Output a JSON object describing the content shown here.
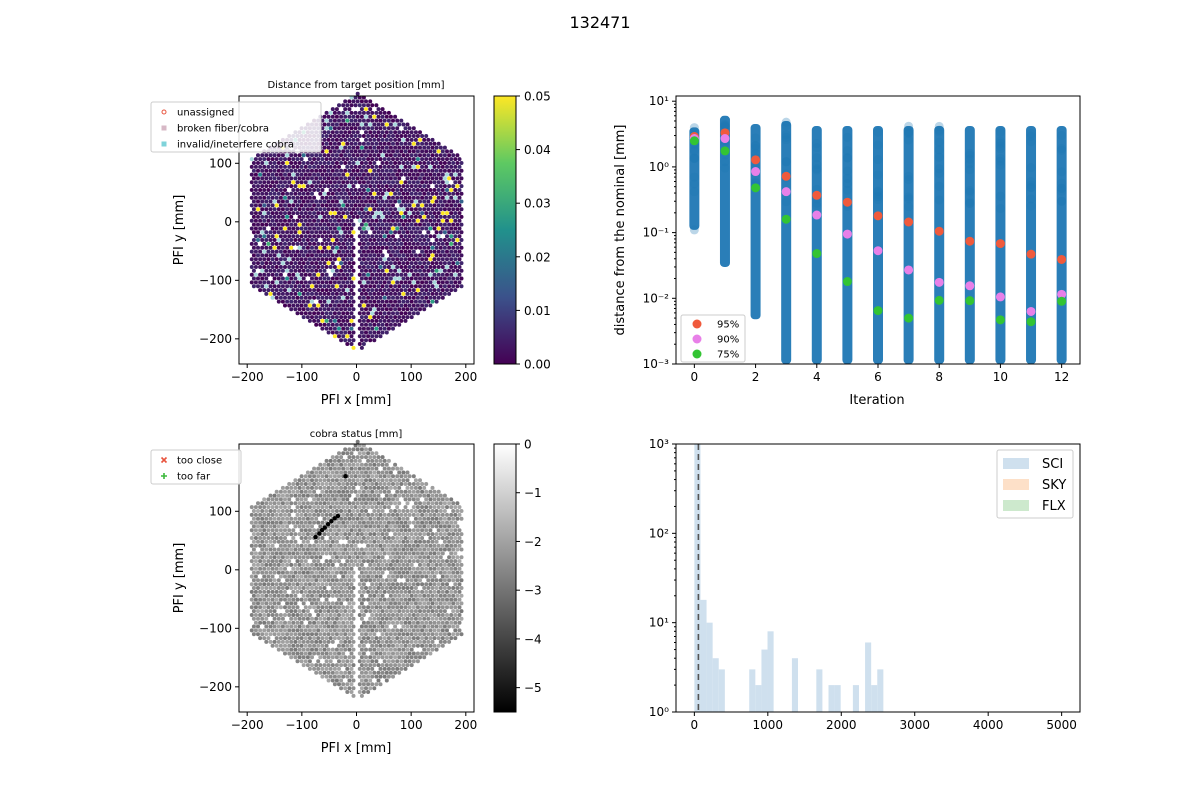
{
  "figure_title": "132471",
  "chart_data": [
    {
      "id": "hex_distance",
      "type": "scatter",
      "title": "Distance from target position [mm]",
      "xlabel": "PFI x [mm]",
      "ylabel": "PFI y [mm]",
      "xlim": [
        -215,
        215
      ],
      "ylim": [
        -243,
        215
      ],
      "xticks": [
        -200,
        -100,
        0,
        100,
        200
      ],
      "yticks": [
        -200,
        -100,
        0,
        100
      ],
      "xtick_labels": [
        "−200",
        "−100",
        "0",
        "100",
        "200"
      ],
      "ytick_labels": [
        "−200",
        "−100",
        "0",
        "100"
      ],
      "legend": [
        "unassigned",
        "broken fiber/cobra",
        "invalid/ineterfere cobra"
      ],
      "legend_colors": [
        "#e8543e",
        "#d7b8c6",
        "#7fd3da"
      ],
      "colorbar": {
        "min": 0.0,
        "max": 0.05,
        "ticks": [
          "0.00",
          "0.01",
          "0.02",
          "0.03",
          "0.04",
          "0.05"
        ],
        "colormap": "viridis"
      },
      "grid": false,
      "legend_placement": "top-left"
    },
    {
      "id": "convergence",
      "type": "scatter",
      "xlabel": "Iteration",
      "ylabel": "distance from the nominal [mm]",
      "xlim": [
        -0.6,
        12.6
      ],
      "ylim": [
        0.001,
        12
      ],
      "yscale": "log",
      "xticks": [
        0,
        2,
        4,
        6,
        8,
        10,
        12
      ],
      "ytick_labels": [
        "10⁻³",
        "10⁻²",
        "10⁻¹",
        "10⁰",
        "10¹"
      ],
      "all_points_range": [
        {
          "x": 0,
          "min": 0.11,
          "max": 4.0
        },
        {
          "x": 1,
          "min": 0.03,
          "max": 6.0
        },
        {
          "x": 2,
          "min": 0.0048,
          "max": 4.5
        },
        {
          "x": 3,
          "min": 0.001,
          "max": 5.0
        },
        {
          "x": 4,
          "min": 0.001,
          "max": 4.2
        },
        {
          "x": 5,
          "min": 0.001,
          "max": 4.2
        },
        {
          "x": 6,
          "min": 0.001,
          "max": 4.2
        },
        {
          "x": 7,
          "min": 0.001,
          "max": 4.2
        },
        {
          "x": 8,
          "min": 0.001,
          "max": 4.2
        },
        {
          "x": 9,
          "min": 0.001,
          "max": 4.2
        },
        {
          "x": 10,
          "min": 0.001,
          "max": 4.2
        },
        {
          "x": 11,
          "min": 0.001,
          "max": 4.2
        },
        {
          "x": 12,
          "min": 0.001,
          "max": 4.2
        }
      ],
      "series": [
        {
          "name": "95%",
          "color": "#f05a3c",
          "values": [
            2.9,
            3.3,
            1.28,
            0.72,
            0.37,
            0.29,
            0.18,
            0.145,
            0.105,
            0.074,
            0.068,
            0.047,
            0.039
          ]
        },
        {
          "name": "90%",
          "color": "#e880e8",
          "values": [
            2.7,
            2.7,
            0.85,
            0.42,
            0.185,
            0.095,
            0.053,
            0.027,
            0.0175,
            0.0155,
            0.0105,
            0.0063,
            0.0115
          ]
        },
        {
          "name": "75%",
          "color": "#33c433",
          "values": [
            2.5,
            1.75,
            0.48,
            0.16,
            0.048,
            0.018,
            0.0065,
            0.005,
            0.0093,
            0.0092,
            0.0047,
            0.0044,
            0.009
          ]
        }
      ],
      "legend_placement": "bottom-left"
    },
    {
      "id": "hex_status",
      "type": "scatter",
      "title": "cobra status [mm]",
      "xlabel": "PFI x [mm]",
      "ylabel": "PFI y [mm]",
      "xlim": [
        -215,
        215
      ],
      "ylim": [
        -243,
        215
      ],
      "xticks": [
        -200,
        -100,
        0,
        100,
        200
      ],
      "yticks": [
        -200,
        -100,
        0,
        100
      ],
      "xtick_labels": [
        "−200",
        "−100",
        "0",
        "100",
        "200"
      ],
      "ytick_labels": [
        "−200",
        "−100",
        "0",
        "100"
      ],
      "legend": [
        "too close",
        "too far"
      ],
      "legend_colors": [
        "#e8543e",
        "#3cb83c"
      ],
      "colorbar": {
        "min": -5.5,
        "max": 0,
        "ticks": [
          "0",
          "−1",
          "−2",
          "−3",
          "−4",
          "−5"
        ],
        "colormap": "gray"
      },
      "black_points": [
        [
          -75,
          56
        ],
        [
          -68,
          62
        ],
        [
          -63,
          68
        ],
        [
          -58,
          72
        ],
        [
          -52,
          78
        ],
        [
          -46,
          83
        ],
        [
          -40,
          88
        ],
        [
          -34,
          92
        ],
        [
          -20,
          160
        ]
      ],
      "legend_placement": "top-left"
    },
    {
      "id": "histogram",
      "type": "bar",
      "xlim": [
        -250,
        5250
      ],
      "ylim": [
        1,
        1000
      ],
      "yscale": "log",
      "xticks": [
        0,
        1000,
        2000,
        3000,
        4000,
        5000
      ],
      "ytick_labels": [
        "10⁰",
        "10¹",
        "10²",
        "10³"
      ],
      "bin_width": 83,
      "bins": [
        {
          "x": 0,
          "value": 1000
        },
        {
          "x": 83,
          "value": 18
        },
        {
          "x": 166,
          "value": 10
        },
        {
          "x": 249,
          "value": 4
        },
        {
          "x": 332,
          "value": 3
        },
        {
          "x": 747,
          "value": 3
        },
        {
          "x": 830,
          "value": 2
        },
        {
          "x": 913,
          "value": 5
        },
        {
          "x": 996,
          "value": 8
        },
        {
          "x": 1328,
          "value": 4
        },
        {
          "x": 1660,
          "value": 3
        },
        {
          "x": 1826,
          "value": 2
        },
        {
          "x": 1909,
          "value": 2
        },
        {
          "x": 2158,
          "value": 2
        },
        {
          "x": 2324,
          "value": 6
        },
        {
          "x": 2407,
          "value": 2
        },
        {
          "x": 2490,
          "value": 3
        }
      ],
      "vline_x": 55,
      "series": [
        {
          "name": "SCI",
          "color": "#cfe0ee"
        },
        {
          "name": "SKY",
          "color": "#fde0c8"
        },
        {
          "name": "FLX",
          "color": "#cde9cd"
        }
      ],
      "legend_placement": "top-right"
    }
  ]
}
